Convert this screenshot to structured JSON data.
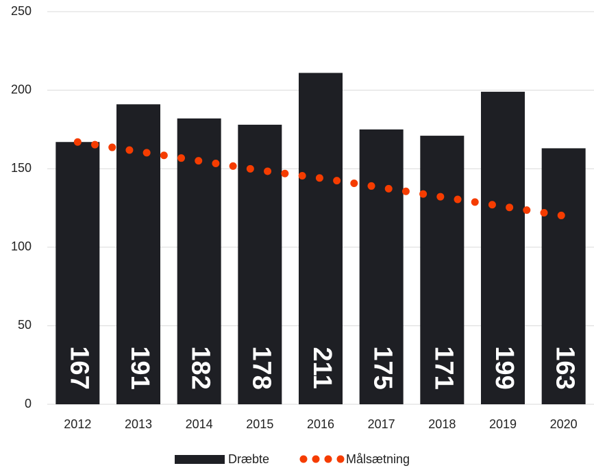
{
  "chart_data": {
    "type": "bar",
    "categories": [
      "2012",
      "2013",
      "2014",
      "2015",
      "2016",
      "2017",
      "2018",
      "2019",
      "2020"
    ],
    "series": [
      {
        "name": "Dræbte",
        "type": "bar",
        "color": "#1e1f24",
        "values": [
          167,
          191,
          182,
          178,
          211,
          175,
          171,
          199,
          163
        ]
      },
      {
        "name": "Målsætning",
        "type": "line",
        "style": "dotted",
        "color": "#f53c00",
        "values": [
          167,
          161,
          155,
          149,
          144,
          138,
          132,
          126,
          120
        ]
      }
    ],
    "ylim": [
      0,
      250
    ],
    "yticks": [
      0,
      50,
      100,
      150,
      200,
      250
    ],
    "grid": true,
    "legend": "bottom"
  }
}
